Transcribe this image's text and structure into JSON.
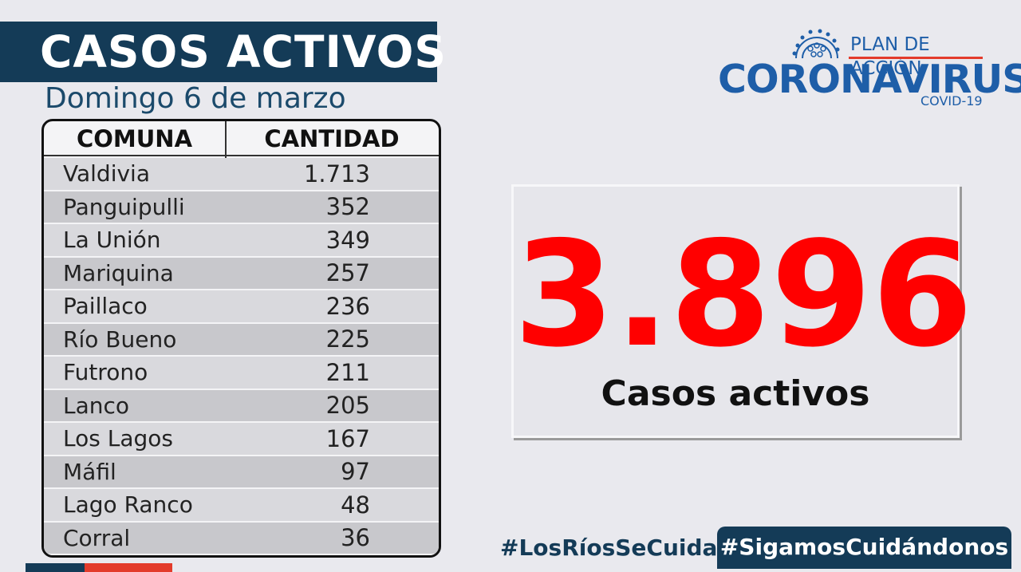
{
  "header": {
    "title": "CASOS ACTIVOS",
    "date": "Domingo 6 de marzo"
  },
  "table": {
    "col_comuna": "COMUNA",
    "col_cantidad": "CANTIDAD",
    "rows": [
      {
        "comuna": "Valdivia",
        "cantidad": "1.713"
      },
      {
        "comuna": "Panguipulli",
        "cantidad": "352"
      },
      {
        "comuna": "La Unión",
        "cantidad": "349"
      },
      {
        "comuna": "Mariquina",
        "cantidad": "257"
      },
      {
        "comuna": "Paillaco",
        "cantidad": "236"
      },
      {
        "comuna": "Río Bueno",
        "cantidad": "225"
      },
      {
        "comuna": "Futrono",
        "cantidad": "211"
      },
      {
        "comuna": "Lanco",
        "cantidad": "205"
      },
      {
        "comuna": "Los Lagos",
        "cantidad": "167"
      },
      {
        "comuna": "Máfil",
        "cantidad": "97"
      },
      {
        "comuna": "Lago Ranco",
        "cantidad": "48"
      },
      {
        "comuna": "Corral",
        "cantidad": "36"
      }
    ]
  },
  "summary": {
    "total": "3.896",
    "label": "Casos activos"
  },
  "logo": {
    "plan": "PLAN DE ACCIÓN",
    "main": "CORONAVIRUS",
    "sub": "COVID-19",
    "icon": "virus-icon"
  },
  "footer": {
    "hashtag_1": "#LosRíosSeCuida",
    "hashtag_2": "#SigamosCuidándonos"
  },
  "colors": {
    "navy": "#143b57",
    "red": "#ff0000",
    "brand_blue": "#1e5ea8"
  }
}
